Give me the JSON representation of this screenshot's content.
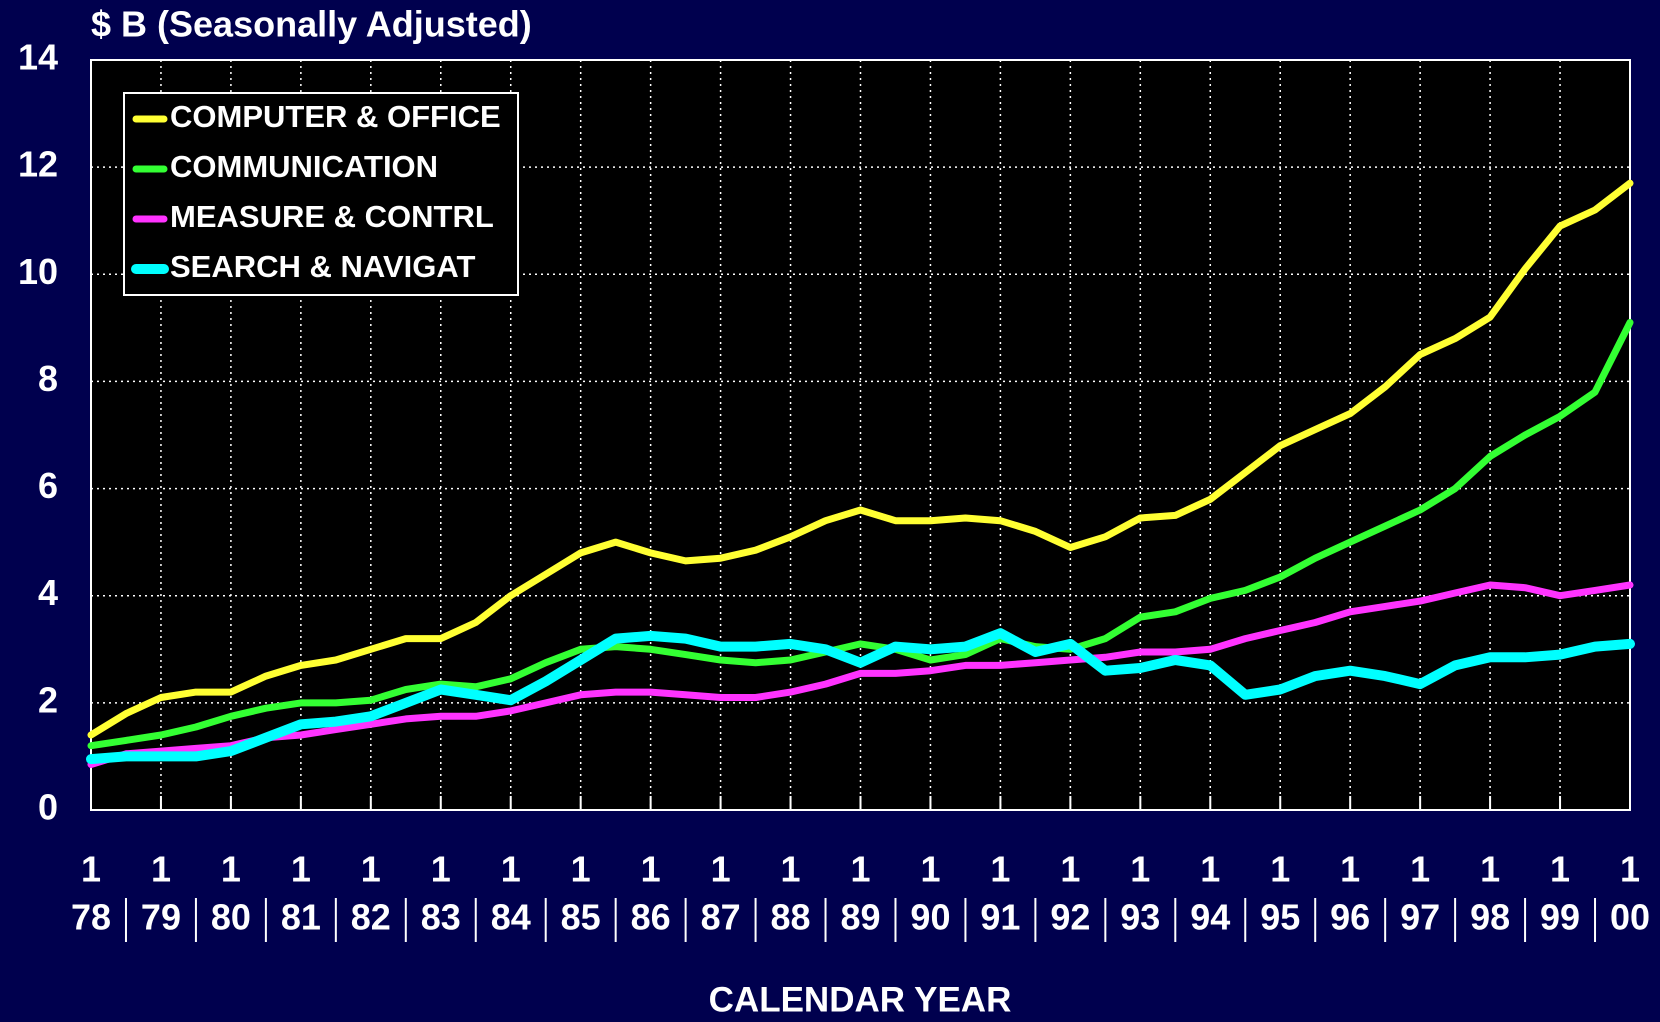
{
  "chart_data": {
    "type": "line",
    "title": "$ B (Seasonally Adjusted)",
    "xlabel": "CALENDAR YEAR",
    "xtick_month": "1",
    "x": [
      1978,
      1978.5,
      1979,
      1979.5,
      1980,
      1980.5,
      1981,
      1981.5,
      1982,
      1982.5,
      1983,
      1983.5,
      1984,
      1984.5,
      1985,
      1985.5,
      1986,
      1986.5,
      1987,
      1987.5,
      1988,
      1988.5,
      1989,
      1989.5,
      1990,
      1990.5,
      1991,
      1991.5,
      1992,
      1992.5,
      1993,
      1993.5,
      1994,
      1994.5,
      1995,
      1995.5,
      1996,
      1996.5,
      1997,
      1997.5,
      1998,
      1998.5,
      1999,
      1999.5,
      2000
    ],
    "series": [
      {
        "name": "COMPUTER & OFFICE",
        "color": "#ffff33",
        "values": [
          1.4,
          1.8,
          2.1,
          2.2,
          2.2,
          2.5,
          2.7,
          2.8,
          3.0,
          3.2,
          3.2,
          3.5,
          4.0,
          4.4,
          4.8,
          5.0,
          4.8,
          4.65,
          4.7,
          4.85,
          5.1,
          5.4,
          5.6,
          5.4,
          5.4,
          5.45,
          5.4,
          5.2,
          4.9,
          5.1,
          5.45,
          5.5,
          5.8,
          6.3,
          6.8,
          7.1,
          7.4,
          7.9,
          8.5,
          8.8,
          9.2,
          10.1,
          10.9,
          11.2,
          11.7
        ]
      },
      {
        "name": "COMMUNICATION",
        "color": "#33ff33",
        "values": [
          1.2,
          1.3,
          1.4,
          1.55,
          1.75,
          1.9,
          2.0,
          2.0,
          2.05,
          2.25,
          2.35,
          2.3,
          2.45,
          2.75,
          3.0,
          3.05,
          3.0,
          2.9,
          2.8,
          2.75,
          2.8,
          2.95,
          3.1,
          3.0,
          2.8,
          2.9,
          3.2,
          3.05,
          3.0,
          3.2,
          3.6,
          3.7,
          3.95,
          4.1,
          4.35,
          4.7,
          5.0,
          5.3,
          5.6,
          6.0,
          6.6,
          7.0,
          7.35,
          7.8,
          9.1
        ]
      },
      {
        "name": "MEASURE & CONTRL",
        "color": "#ff33ff",
        "values": [
          0.85,
          1.05,
          1.1,
          1.15,
          1.2,
          1.35,
          1.4,
          1.5,
          1.6,
          1.7,
          1.75,
          1.75,
          1.85,
          2.0,
          2.15,
          2.2,
          2.2,
          2.15,
          2.1,
          2.1,
          2.2,
          2.35,
          2.55,
          2.55,
          2.6,
          2.7,
          2.7,
          2.75,
          2.8,
          2.85,
          2.95,
          2.95,
          3.0,
          3.2,
          3.35,
          3.5,
          3.7,
          3.8,
          3.9,
          4.05,
          4.2,
          4.15,
          4.0,
          4.1,
          4.2
        ]
      },
      {
        "name": "SEARCH & NAVIGAT",
        "color": "#00ffff",
        "values": [
          0.95,
          1.0,
          1.0,
          1.0,
          1.1,
          1.35,
          1.6,
          1.65,
          1.75,
          2.0,
          2.25,
          2.15,
          2.05,
          2.4,
          2.8,
          3.2,
          3.25,
          3.2,
          3.05,
          3.05,
          3.1,
          3.0,
          2.75,
          3.05,
          3.0,
          3.05,
          3.3,
          2.95,
          3.1,
          2.6,
          2.65,
          2.8,
          2.7,
          2.15,
          2.25,
          2.5,
          2.6,
          2.5,
          2.35,
          2.7,
          2.85,
          2.85,
          2.9,
          3.05,
          3.1
        ]
      }
    ],
    "xlim": [
      1978,
      2000
    ],
    "xticks": [
      {
        "value": 1978,
        "label": "78"
      },
      {
        "value": 1979,
        "label": "79"
      },
      {
        "value": 1980,
        "label": "80"
      },
      {
        "value": 1981,
        "label": "81"
      },
      {
        "value": 1982,
        "label": "82"
      },
      {
        "value": 1983,
        "label": "83"
      },
      {
        "value": 1984,
        "label": "84"
      },
      {
        "value": 1985,
        "label": "85"
      },
      {
        "value": 1986,
        "label": "86"
      },
      {
        "value": 1987,
        "label": "87"
      },
      {
        "value": 1988,
        "label": "88"
      },
      {
        "value": 1989,
        "label": "89"
      },
      {
        "value": 1990,
        "label": "90"
      },
      {
        "value": 1991,
        "label": "91"
      },
      {
        "value": 1992,
        "label": "92"
      },
      {
        "value": 1993,
        "label": "93"
      },
      {
        "value": 1994,
        "label": "94"
      },
      {
        "value": 1995,
        "label": "95"
      },
      {
        "value": 1996,
        "label": "96"
      },
      {
        "value": 1997,
        "label": "97"
      },
      {
        "value": 1998,
        "label": "98"
      },
      {
        "value": 1999,
        "label": "99"
      },
      {
        "value": 2000,
        "label": "00"
      }
    ],
    "ylim": [
      0,
      14
    ],
    "yticks": [
      0,
      2,
      4,
      6,
      8,
      10,
      12,
      14
    ],
    "grid": true,
    "legend": "upper left"
  }
}
